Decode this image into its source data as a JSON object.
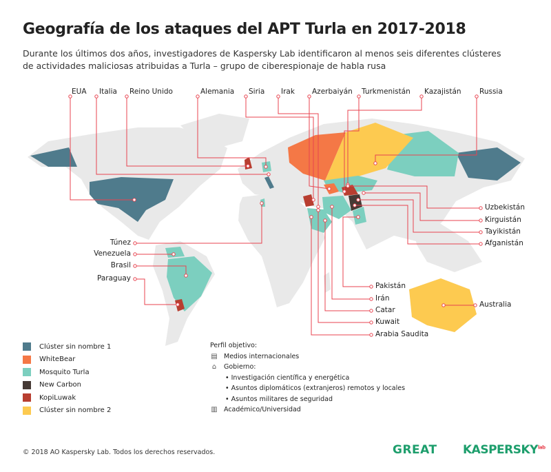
{
  "header": {
    "title": "Geografía de los ataques del APT Turla en 2017-2018",
    "subtitle_line1": "Durante los últimos dos años, investigadores de Kaspersky Lab identificaron al menos seis diferentes clústeres",
    "subtitle_line2": "de actividades maliciosas atribuidas a Turla – grupo de ciberespionaje de habla rusa"
  },
  "colors": {
    "cluster1": "#4f7b8c",
    "whitebear": "#f47846",
    "mosquito": "#7ccfbf",
    "newcarbon": "#463a35",
    "kopiluwak": "#b83e30",
    "cluster2": "#fdca50",
    "land": "#e9e9e9",
    "leader": "#e8434f"
  },
  "countries": {
    "eua": "EUA",
    "italia": "Italia",
    "reino_unido": "Reino Unido",
    "alemania": "Alemania",
    "siria": "Siria",
    "irak": "Irak",
    "azerbaiyan": "Azerbaiyán",
    "turkmenistan": "Turkmenistán",
    "kazajistan": "Kazajistán",
    "russia": "Russia",
    "uzbekistan": "Uzbekistán",
    "kirguistan": "Kirguistán",
    "tayikistan": "Tayikistán",
    "afganistan": "Afganistán",
    "australia": "Australia",
    "tunez": "Túnez",
    "venezuela": "Venezuela",
    "brasil": "Brasil",
    "paraguay": "Paraguay",
    "pakistan": "Pakistán",
    "iran": "Irán",
    "catar": "Catar",
    "kuwait": "Kuwait",
    "arabia_saudita": "Arabia Saudita"
  },
  "legend": [
    {
      "label": "Clúster sin nombre 1",
      "color": "#4f7b8c"
    },
    {
      "label": "WhiteBear",
      "color": "#f47846"
    },
    {
      "label": "Mosquito Turla",
      "color": "#7ccfbf"
    },
    {
      "label": "New Carbon",
      "color": "#463a35"
    },
    {
      "label": "KopiLuwak",
      "color": "#b83e30"
    },
    {
      "label": "Clúster sin nombre 2",
      "color": "#fdca50"
    }
  ],
  "profile": {
    "title": "Perfil objetivo:",
    "media": "Medios internacionales",
    "government": "Gobierno:",
    "gov_items": [
      "Investigación científica y energética",
      "Asuntos diplomáticos (extranjeros) remotos y locales",
      "Asuntos militares de seguridad"
    ],
    "academic": "Académico/Universidad"
  },
  "footer": {
    "copyright": "© 2018 AO Kaspersky Lab. Todos los derechos reservados."
  },
  "logos": {
    "great": "GREAT",
    "kaspersky": "KASPERSKY",
    "kaspersky_suffix": "lab"
  }
}
